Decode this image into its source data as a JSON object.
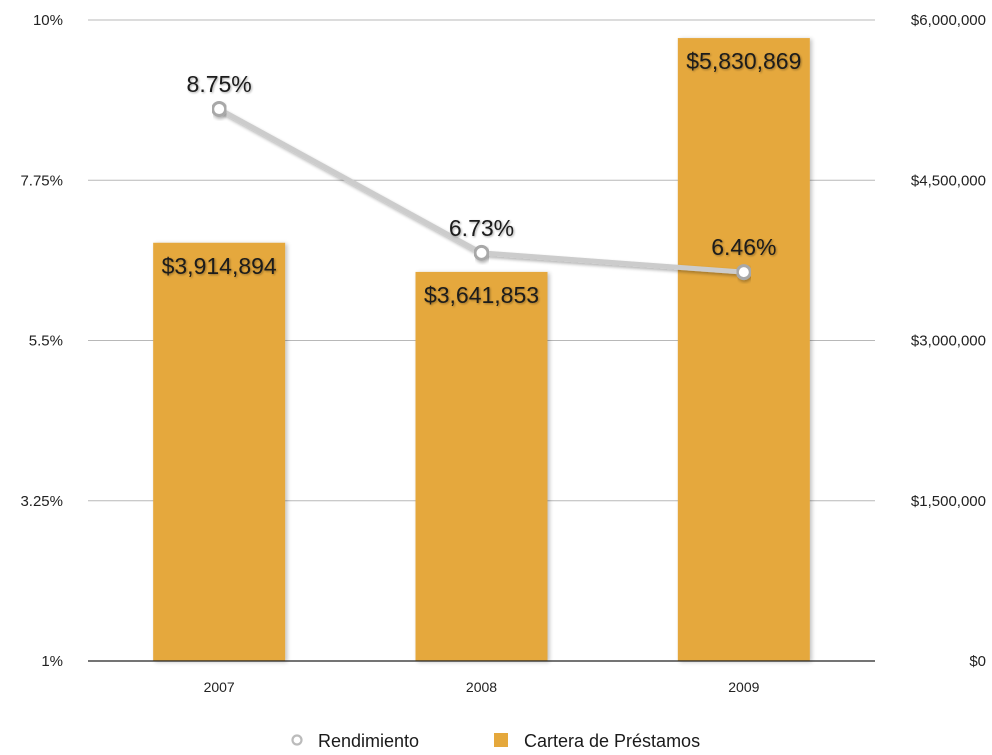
{
  "chart_data": {
    "type": "bar",
    "categories": [
      "2007",
      "2008",
      "2009"
    ],
    "series": [
      {
        "name": "Cartera de Préstamos",
        "type": "bar",
        "axis": "right",
        "color": "#E5A83C",
        "values": [
          3914894,
          3641853,
          5830869
        ],
        "value_labels": [
          "$3,914,894",
          "$3,641,853",
          "$5,830,869"
        ]
      },
      {
        "name": "Rendimiento",
        "type": "line",
        "axis": "left",
        "color": "#CCCCCC",
        "marker": "open-circle",
        "values": [
          8.75,
          6.73,
          6.46
        ],
        "value_labels": [
          "8.75%",
          "6.73%",
          "6.46%"
        ]
      }
    ],
    "y_left": {
      "ylim": [
        1,
        10
      ],
      "ticks": [
        1,
        3.25,
        5.5,
        7.75,
        10
      ],
      "tick_labels": [
        "1%",
        "3.25%",
        "5.5%",
        "7.75%",
        "10%"
      ]
    },
    "y_right": {
      "ylim": [
        0,
        6000000
      ],
      "ticks": [
        0,
        1500000,
        3000000,
        4500000,
        6000000
      ],
      "tick_labels": [
        "$0",
        "$1,500,000",
        "$3,000,000",
        "$4,500,000",
        "$6,000,000"
      ]
    },
    "grid": true,
    "legend": {
      "position": "bottom-center",
      "entries": [
        {
          "label": "Rendimiento",
          "marker": "open-circle",
          "color": "#BBBBBB"
        },
        {
          "label": "Cartera de Préstamos",
          "marker": "square",
          "color": "#E5A83C"
        }
      ]
    }
  }
}
